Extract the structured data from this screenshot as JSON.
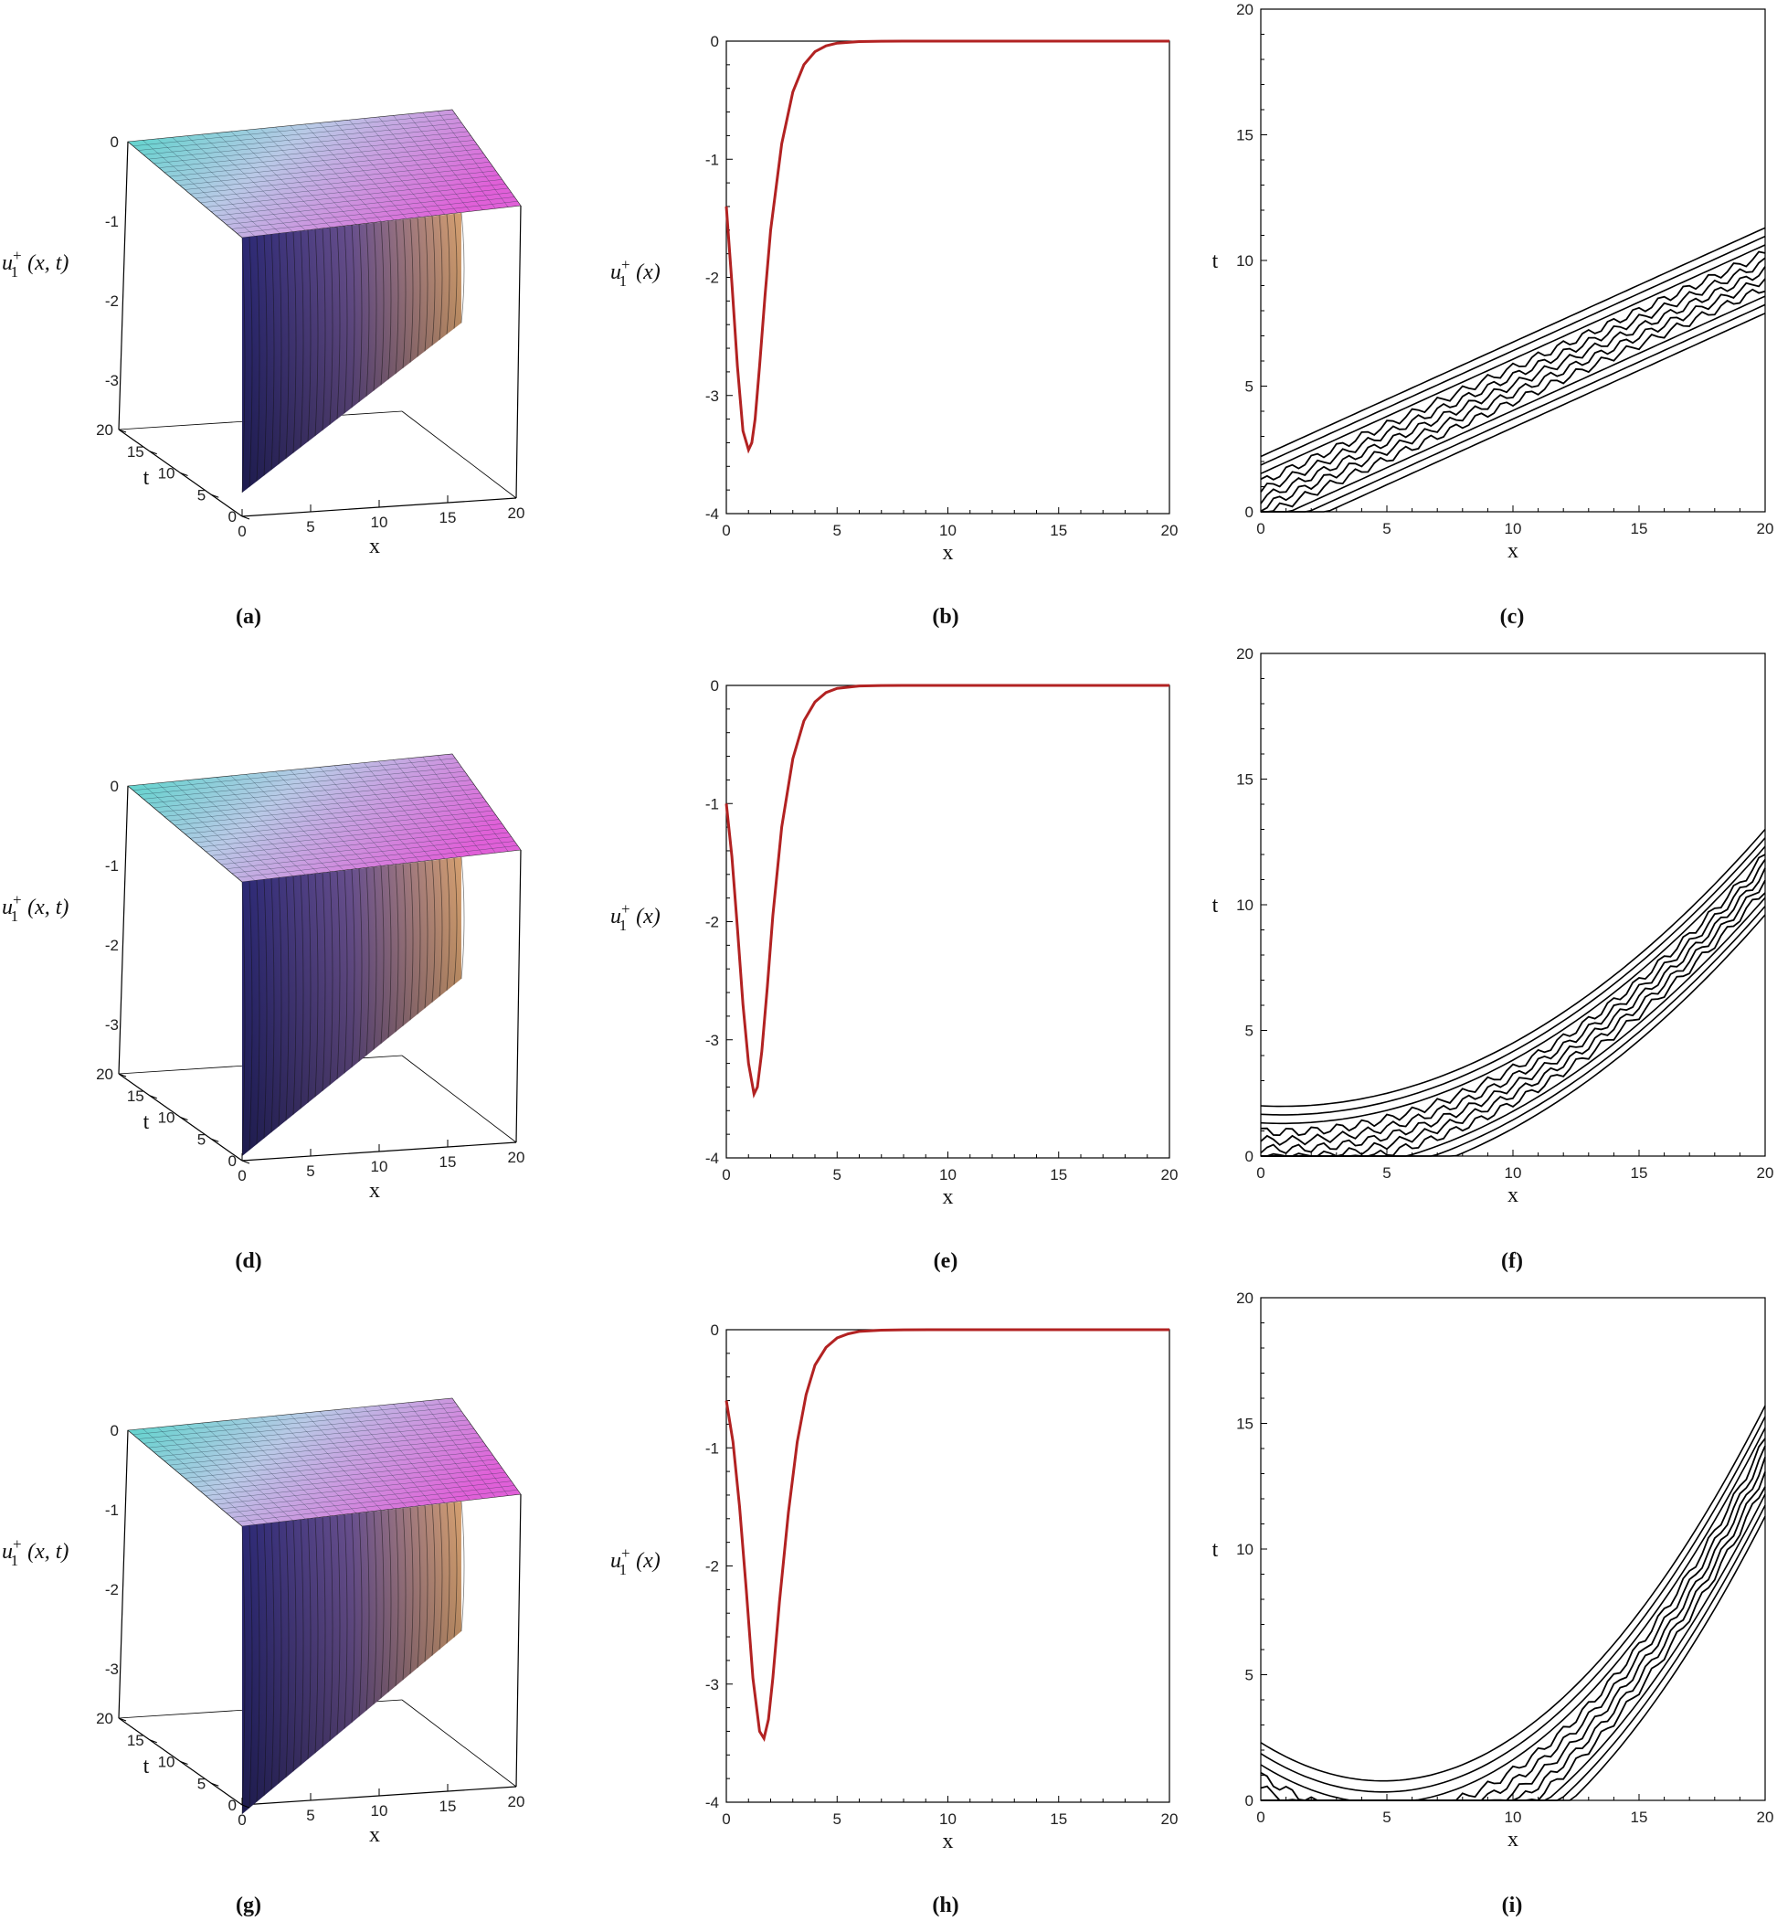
{
  "figure": {
    "panel_labels": [
      "(a)",
      "(b)",
      "(c)",
      "(d)",
      "(e)",
      "(f)",
      "(g)",
      "(h)",
      "(i)"
    ]
  },
  "colors": {
    "curve": "#b22222",
    "contour": "#000000",
    "surface_top_left": "#4fd6c8",
    "surface_top_right": "#e060d8",
    "surface_wall_left": "#3a2f8a",
    "surface_wall_right": "#d8a070"
  },
  "chart_data": [
    {
      "panel": "(a)",
      "type": "surface3d",
      "zlabel": "u1+ (x, t)",
      "xlabel": "x",
      "ylabel": "t",
      "zlabel_parts": {
        "base": "u",
        "sub": "1",
        "sup": "+",
        "args": " (x, t)"
      },
      "x_range": [
        0,
        20
      ],
      "t_range": [
        0,
        20
      ],
      "z_range": [
        -3.5,
        0
      ],
      "x_ticks": [
        "0",
        "5",
        "10",
        "15",
        "20"
      ],
      "t_ticks": [
        "0",
        "5",
        "10",
        "15",
        "20"
      ],
      "z_ticks": [
        "0",
        "-1",
        "-2",
        "-3"
      ],
      "wall_depth": 0.38
    },
    {
      "panel": "(b)",
      "type": "line",
      "ylabel": "u1+ (x)",
      "xlabel": "x",
      "ylabel_parts": {
        "base": "u",
        "sub": "1",
        "sup": "+",
        "args": " (x)"
      },
      "xlim": [
        0,
        20
      ],
      "ylim": [
        -4,
        0
      ],
      "x_ticks": [
        "0",
        "5",
        "10",
        "15",
        "20"
      ],
      "y_ticks": [
        "0",
        "-1",
        "-2",
        "-3",
        "-4"
      ],
      "series": [
        {
          "x": [
            0,
            0.25,
            0.5,
            0.75,
            1.0,
            1.15,
            1.3,
            1.5,
            1.75,
            2.0,
            2.5,
            3.0,
            3.5,
            4.0,
            4.5,
            5.0,
            6.0,
            7.0,
            8.0,
            10.0,
            15.0,
            20.0
          ],
          "y": [
            -1.4,
            -2.05,
            -2.75,
            -3.3,
            -3.46,
            -3.4,
            -3.2,
            -2.75,
            -2.15,
            -1.6,
            -0.87,
            -0.43,
            -0.2,
            -0.09,
            -0.04,
            -0.017,
            -0.004,
            -0.001,
            0,
            0,
            0,
            0
          ]
        }
      ]
    },
    {
      "panel": "(c)",
      "type": "contour",
      "xlabel": "x",
      "ylabel": "t",
      "xlim": [
        0,
        20
      ],
      "ylim": [
        0,
        20
      ],
      "x_ticks": [
        "0",
        "5",
        "10",
        "15",
        "20"
      ],
      "y_ticks": [
        "0",
        "5",
        "10",
        "15",
        "20"
      ],
      "band_start": [
        0,
        0.5
      ],
      "band_end": [
        20,
        9.6
      ],
      "band_halfwidth": 1.7,
      "band_curvature": 0.0,
      "lines": 11
    },
    {
      "panel": "(d)",
      "type": "surface3d",
      "zlabel": "u1+ (x, t)",
      "xlabel": "x",
      "ylabel": "t",
      "zlabel_parts": {
        "base": "u",
        "sub": "1",
        "sup": "+",
        "args": " (x, t)"
      },
      "x_range": [
        0,
        20
      ],
      "t_range": [
        0,
        20
      ],
      "z_range": [
        -3.5,
        0
      ],
      "x_ticks": [
        "0",
        "5",
        "10",
        "15",
        "20"
      ],
      "t_ticks": [
        "0",
        "5",
        "10",
        "15",
        "20"
      ],
      "z_ticks": [
        "0",
        "-1",
        "-2",
        "-3"
      ],
      "wall_depth": 0.45
    },
    {
      "panel": "(e)",
      "type": "line",
      "ylabel": "u1+ (x)",
      "xlabel": "x",
      "ylabel_parts": {
        "base": "u",
        "sub": "1",
        "sup": "+",
        "args": " (x)"
      },
      "xlim": [
        0,
        20
      ],
      "ylim": [
        -4,
        0
      ],
      "x_ticks": [
        "0",
        "5",
        "10",
        "15",
        "20"
      ],
      "y_ticks": [
        "0",
        "-1",
        "-2",
        "-3",
        "-4"
      ],
      "series": [
        {
          "x": [
            0,
            0.25,
            0.5,
            0.75,
            1.0,
            1.25,
            1.4,
            1.6,
            1.85,
            2.1,
            2.5,
            3.0,
            3.5,
            4.0,
            4.5,
            5.0,
            6.0,
            7.0,
            8.0,
            10.0,
            15.0,
            20.0
          ],
          "y": [
            -1.0,
            -1.45,
            -2.05,
            -2.7,
            -3.2,
            -3.46,
            -3.4,
            -3.1,
            -2.55,
            -1.95,
            -1.2,
            -0.62,
            -0.3,
            -0.14,
            -0.06,
            -0.025,
            -0.005,
            -0.001,
            0,
            0,
            0,
            0
          ]
        }
      ]
    },
    {
      "panel": "(f)",
      "type": "contour",
      "xlabel": "x",
      "ylabel": "t",
      "xlim": [
        0,
        20
      ],
      "ylim": [
        0,
        20
      ],
      "x_ticks": [
        "0",
        "5",
        "10",
        "15",
        "20"
      ],
      "y_ticks": [
        "0",
        "5",
        "10",
        "15",
        "20"
      ],
      "band_start": [
        0,
        0.3
      ],
      "band_end": [
        20,
        11.3
      ],
      "band_halfwidth": 1.7,
      "band_curvature": 0.06,
      "lines": 11
    },
    {
      "panel": "(g)",
      "type": "surface3d",
      "zlabel": "u1+ (x, t)",
      "xlabel": "x",
      "ylabel": "t",
      "zlabel_parts": {
        "base": "u",
        "sub": "1",
        "sup": "+",
        "args": " (x, t)"
      },
      "x_range": [
        0,
        20
      ],
      "t_range": [
        0,
        20
      ],
      "z_range": [
        -3.5,
        0
      ],
      "x_ticks": [
        "0",
        "5",
        "10",
        "15",
        "20"
      ],
      "t_ticks": [
        "0",
        "5",
        "10",
        "15",
        "20"
      ],
      "z_ticks": [
        "0",
        "-1",
        "-2",
        "-3"
      ],
      "wall_depth": 0.5
    },
    {
      "panel": "(h)",
      "type": "line",
      "ylabel": "u1+ (x)",
      "xlabel": "x",
      "ylabel_parts": {
        "base": "u",
        "sub": "1",
        "sup": "+",
        "args": " (x)"
      },
      "xlim": [
        0,
        20
      ],
      "ylim": [
        -4,
        0
      ],
      "x_ticks": [
        "0",
        "5",
        "10",
        "15",
        "20"
      ],
      "y_ticks": [
        "0",
        "-1",
        "-2",
        "-3",
        "-4"
      ],
      "series": [
        {
          "x": [
            0,
            0.3,
            0.6,
            0.9,
            1.2,
            1.5,
            1.7,
            1.9,
            2.1,
            2.4,
            2.8,
            3.2,
            3.6,
            4.0,
            4.5,
            5.0,
            5.5,
            6.0,
            7.0,
            8.0,
            10.0,
            15.0,
            20.0
          ],
          "y": [
            -0.6,
            -0.95,
            -1.5,
            -2.2,
            -2.95,
            -3.4,
            -3.46,
            -3.3,
            -2.95,
            -2.3,
            -1.55,
            -0.95,
            -0.55,
            -0.3,
            -0.15,
            -0.07,
            -0.035,
            -0.015,
            -0.004,
            -0.001,
            0,
            0,
            0
          ]
        }
      ]
    },
    {
      "panel": "(i)",
      "type": "contour",
      "xlabel": "x",
      "ylabel": "t",
      "xlim": [
        0,
        20
      ],
      "ylim": [
        0,
        20
      ],
      "x_ticks": [
        "0",
        "5",
        "10",
        "15",
        "20"
      ],
      "y_ticks": [
        "0",
        "5",
        "10",
        "15",
        "20"
      ],
      "band_start": [
        0,
        0.1
      ],
      "band_end": [
        20,
        13.5
      ],
      "band_halfwidth": 2.2,
      "band_curvature": 0.13,
      "lines": 11
    }
  ]
}
